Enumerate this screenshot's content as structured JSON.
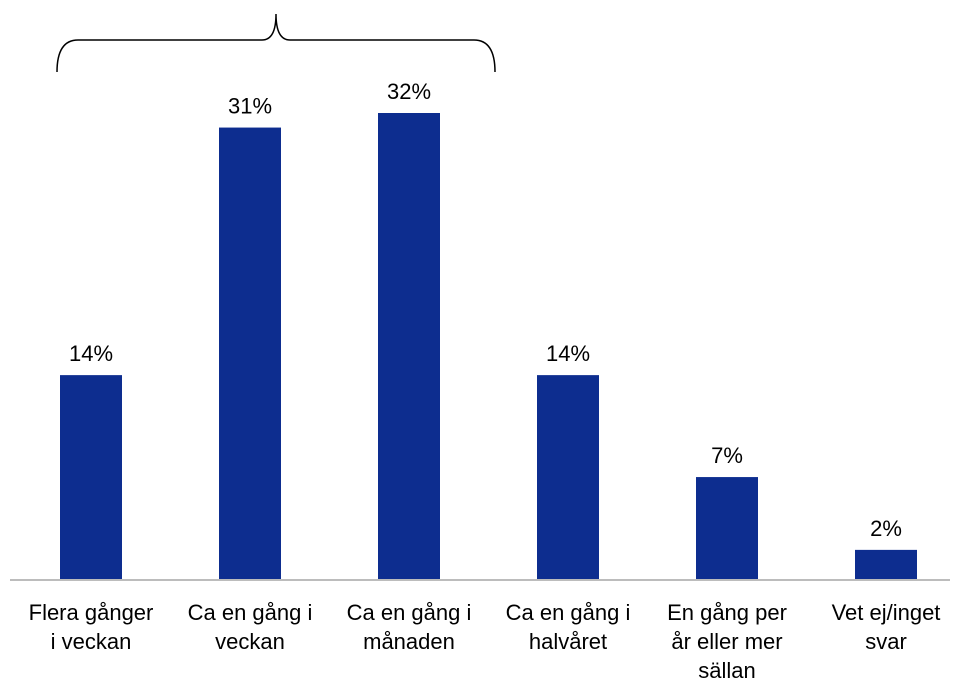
{
  "chart_data": {
    "type": "bar",
    "title": "",
    "xlabel": "",
    "ylabel": "",
    "categories": [
      [
        "Flera gånger",
        "i veckan"
      ],
      [
        "Ca en gång i",
        "veckan"
      ],
      [
        "Ca en gång i",
        "månaden"
      ],
      [
        "Ca en gång i",
        "halvåret"
      ],
      [
        "En gång per",
        "år eller mer",
        "sällan"
      ],
      [
        "Vet ej/inget",
        "svar"
      ]
    ],
    "values": [
      14,
      31,
      32,
      14,
      7,
      2
    ],
    "value_labels": [
      "14%",
      "31%",
      "32%",
      "14%",
      "7%",
      "2%"
    ],
    "unit": "%",
    "ylim": [
      0,
      32
    ],
    "grid": false,
    "legend": "none",
    "bar_color": "#0d2d8f",
    "bracket_over_categories": [
      0,
      2
    ]
  }
}
